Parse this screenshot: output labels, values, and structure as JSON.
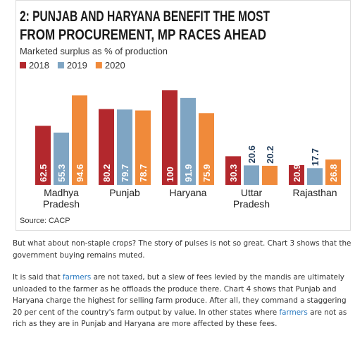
{
  "chart_data": {
    "type": "bar",
    "title": [
      "2: PUNJAB AND HARYANA BENEFIT THE MOST",
      "FROM PROCUREMENT, MP RACES AHEAD"
    ],
    "subtitle": "Marketed surplus as % of production",
    "categories": [
      "Madhya Pradesh",
      "Punjab",
      "Haryana",
      "Uttar Pradesh",
      "Rajasthan"
    ],
    "series": [
      {
        "name": "2018",
        "color": "#b3282d",
        "values": [
          62.5,
          80.2,
          100,
          30.3,
          20.9
        ]
      },
      {
        "name": "2019",
        "color": "#7fa5c3",
        "values": [
          55.3,
          79.7,
          91.9,
          20.6,
          17.7
        ]
      },
      {
        "name": "2020",
        "color": "#f08a3a",
        "values": [
          94.6,
          78.7,
          75.9,
          20.2,
          26.8
        ]
      }
    ],
    "ylim": [
      0,
      100
    ],
    "source": "Source: CACP"
  },
  "paragraphs": [
    [
      "But what about non-staple crops? The story of pulses is not so great. Chart 3 shows that the government buying remains muted."
    ],
    [
      "It is said that ",
      "farmers",
      " are not taxed, but a slew of fees levied by the mandis are ultimately unloaded to the farmer as he offloads the produce there. Chart 4 shows that Punjab and Haryana charge the highest for selling farm produce. After all, they command a staggering 20 per cent of the country's farm output by value. In other states where ",
      "farmers",
      " are not as rich as they are in Punjab and Haryana are more affected by these fees."
    ]
  ]
}
